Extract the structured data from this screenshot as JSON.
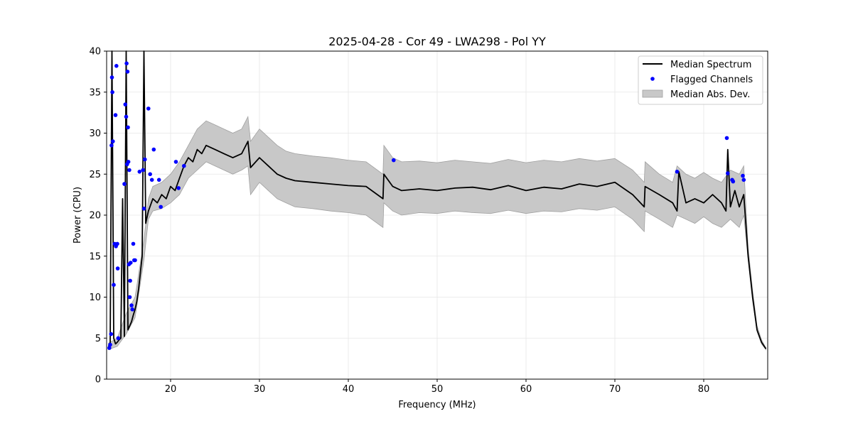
{
  "chart_data": {
    "type": "line",
    "title": "2025-04-28 - Cor 49 - LWA298 - Pol YY",
    "xlabel": "Frequency (MHz)",
    "ylabel": "Power (CPU)",
    "xlim": [
      12.8,
      87.2
    ],
    "ylim": [
      0,
      40
    ],
    "xticks": [
      20,
      30,
      40,
      50,
      60,
      70,
      80
    ],
    "yticks": [
      0,
      5,
      10,
      15,
      20,
      25,
      30,
      35,
      40
    ],
    "grid": true,
    "legend_position": "top-right",
    "colors": {
      "median": "#000000",
      "flagged": "#0000ff",
      "mad_fill": "#c8c8c8",
      "mad_edge": "#a0a0a0"
    },
    "legend": {
      "median_label": "Median Spectrum",
      "flagged_label": "Flagged Channels",
      "mad_label": "Median Abs. Dev."
    },
    "series": [
      {
        "name": "Median Spectrum",
        "x": [
          13.0,
          13.2,
          13.4,
          13.6,
          13.8,
          14.0,
          14.2,
          14.4,
          14.6,
          14.8,
          15.0,
          15.2,
          15.4,
          15.6,
          15.8,
          16.0,
          16.2,
          16.4,
          16.6,
          16.8,
          17.0,
          17.2,
          17.5,
          18.0,
          18.5,
          19.0,
          19.5,
          20.0,
          20.5,
          21.0,
          21.5,
          22.0,
          22.5,
          23.0,
          23.5,
          24.0,
          25.0,
          26.0,
          27.0,
          28.0,
          28.7,
          29.0,
          30.0,
          31.0,
          32.0,
          33.0,
          34.0,
          36.0,
          38.0,
          40.0,
          42.0,
          43.9,
          44.0,
          45.0,
          46.0,
          48.0,
          50.0,
          52.0,
          54.0,
          56.0,
          58.0,
          60.0,
          62.0,
          64.0,
          66.0,
          68.0,
          70.0,
          72.0,
          73.3,
          73.4,
          75.0,
          76.5,
          77.0,
          77.2,
          78.0,
          79.0,
          80.0,
          81.0,
          82.0,
          82.5,
          82.7,
          83.0,
          83.5,
          84.0,
          84.5,
          85.0,
          85.5,
          86.0,
          86.5,
          87.0
        ],
        "y": [
          4.0,
          4.3,
          40.0,
          5.0,
          4.3,
          4.5,
          4.8,
          5.0,
          22.0,
          5.2,
          40.0,
          6.0,
          6.5,
          7.0,
          7.8,
          8.5,
          9.5,
          11.0,
          13.0,
          15.0,
          40.0,
          19.0,
          20.5,
          22.0,
          21.5,
          22.5,
          22.0,
          23.5,
          23.0,
          24.5,
          26.0,
          27.0,
          26.5,
          28.0,
          27.5,
          28.5,
          28.0,
          27.5,
          27.0,
          27.5,
          29.0,
          25.8,
          27.0,
          26.0,
          25.0,
          24.5,
          24.2,
          24.0,
          23.8,
          23.6,
          23.5,
          22.0,
          25.0,
          23.5,
          23.0,
          23.2,
          23.0,
          23.3,
          23.4,
          23.1,
          23.6,
          23.0,
          23.4,
          23.2,
          23.8,
          23.5,
          24.0,
          22.5,
          21.0,
          23.5,
          22.5,
          21.5,
          20.5,
          25.3,
          21.5,
          22.0,
          21.5,
          22.5,
          21.5,
          20.5,
          28.0,
          21.0,
          23.0,
          21.0,
          22.5,
          15.0,
          10.0,
          6.0,
          4.5,
          3.7
        ]
      },
      {
        "name": "Median Abs. Dev.",
        "x": [
          13.0,
          14.0,
          15.0,
          16.0,
          17.0,
          17.5,
          18.0,
          19.0,
          20.0,
          21.0,
          22.0,
          23.0,
          24.0,
          25.0,
          26.0,
          27.0,
          28.0,
          28.7,
          29.0,
          30.0,
          31.0,
          32.0,
          33.0,
          34.0,
          36.0,
          38.0,
          40.0,
          42.0,
          43.9,
          44.0,
          45.0,
          46.0,
          48.0,
          50.0,
          52.0,
          54.0,
          56.0,
          58.0,
          60.0,
          62.0,
          64.0,
          66.0,
          68.0,
          70.0,
          72.0,
          73.3,
          73.4,
          75.0,
          76.5,
          77.0,
          78.0,
          79.0,
          80.0,
          81.0,
          82.0,
          83.0,
          84.0,
          84.5,
          85.0,
          85.5,
          86.0,
          86.5,
          87.0
        ],
        "lower": [
          3.6,
          4.0,
          5.5,
          7.5,
          14.5,
          19.5,
          20.5,
          20.8,
          21.5,
          22.5,
          24.5,
          25.5,
          26.5,
          26.0,
          25.5,
          25.0,
          25.5,
          26.0,
          22.5,
          24.0,
          23.0,
          22.0,
          21.5,
          21.0,
          20.8,
          20.5,
          20.3,
          20.0,
          18.5,
          21.5,
          20.5,
          20.0,
          20.3,
          20.2,
          20.5,
          20.3,
          20.2,
          20.6,
          20.2,
          20.5,
          20.4,
          20.8,
          20.6,
          21.0,
          19.5,
          18.0,
          20.5,
          19.5,
          18.5,
          20.0,
          19.5,
          19.0,
          19.8,
          19.0,
          18.5,
          19.5,
          18.5,
          20.0,
          14.5,
          9.5,
          5.8,
          4.3,
          3.6
        ],
        "upper": [
          4.4,
          5.0,
          8.0,
          10.0,
          17.0,
          22.0,
          23.5,
          24.0,
          25.0,
          26.5,
          28.5,
          30.5,
          31.5,
          31.0,
          30.5,
          30.0,
          30.5,
          32.0,
          29.0,
          30.5,
          29.5,
          28.5,
          27.8,
          27.5,
          27.2,
          27.0,
          26.7,
          26.5,
          25.0,
          28.5,
          27.0,
          26.5,
          26.6,
          26.4,
          26.7,
          26.5,
          26.3,
          26.8,
          26.4,
          26.7,
          26.5,
          26.9,
          26.6,
          26.9,
          25.5,
          24.0,
          26.5,
          25.0,
          24.0,
          26.0,
          25.0,
          24.5,
          25.2,
          24.5,
          24.0,
          25.5,
          25.0,
          26.0,
          16.0,
          10.8,
          6.5,
          4.8,
          3.8
        ]
      },
      {
        "name": "Flagged Channels",
        "x": [
          13.1,
          13.2,
          13.3,
          13.35,
          13.4,
          13.45,
          13.5,
          13.6,
          13.7,
          13.8,
          13.85,
          13.9,
          14.0,
          14.05,
          14.1,
          14.8,
          14.9,
          15.0,
          15.05,
          15.1,
          15.15,
          15.2,
          15.25,
          15.3,
          15.35,
          15.4,
          15.45,
          15.5,
          15.6,
          15.7,
          15.8,
          15.9,
          16.0,
          16.5,
          16.9,
          17.0,
          17.1,
          17.5,
          17.7,
          17.9,
          18.1,
          18.7,
          18.9,
          20.6,
          20.9,
          21.5,
          45.1,
          77.0,
          82.6,
          82.7,
          83.2,
          83.3,
          84.4,
          84.5
        ],
        "y": [
          3.8,
          4.2,
          5.5,
          28.5,
          36.8,
          35.0,
          29.0,
          11.5,
          16.5,
          32.2,
          16.2,
          38.2,
          16.5,
          13.5,
          5.0,
          23.8,
          33.5,
          32.0,
          38.5,
          26.2,
          37.5,
          30.7,
          26.5,
          14.0,
          25.5,
          10.0,
          12.0,
          14.2,
          9.0,
          8.5,
          16.5,
          14.5,
          14.5,
          25.3,
          25.5,
          20.8,
          26.8,
          33.0,
          25.0,
          24.3,
          28.0,
          24.3,
          21.0,
          26.5,
          23.3,
          26.0,
          26.7,
          25.3,
          29.4,
          25.1,
          24.3,
          24.1,
          24.8,
          24.3
        ]
      }
    ]
  }
}
